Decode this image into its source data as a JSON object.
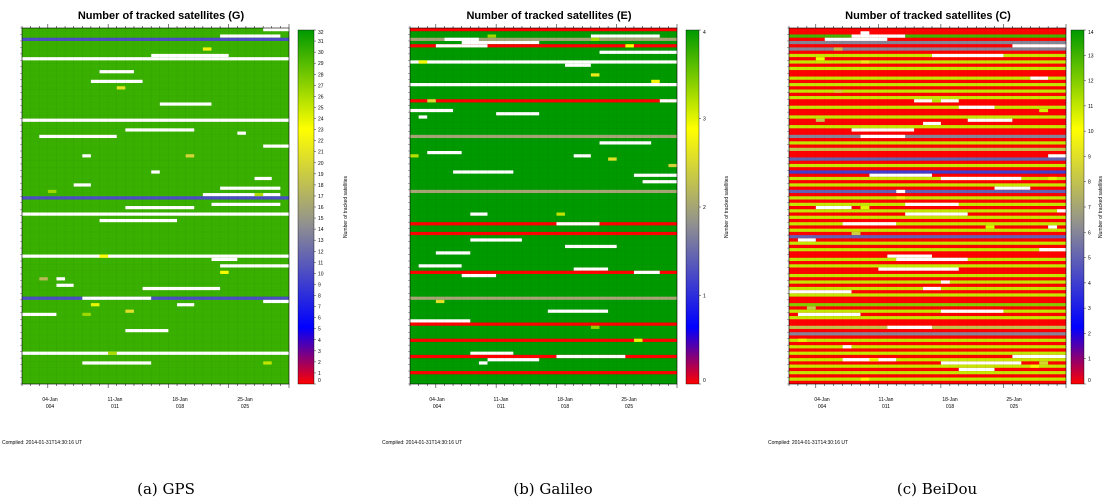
{
  "chart_data": [
    {
      "type": "heatmap",
      "title": "Number of tracked satellites (G)",
      "caption": "(a) GPS",
      "colorbar_label": "Number of tracked satellites",
      "colorbar_range": [
        0,
        32
      ],
      "colorbar_ticks": [
        "0",
        "1",
        "2",
        "3",
        "4",
        "5",
        "6",
        "7",
        "8",
        "9",
        "10",
        "11",
        "12",
        "13",
        "14",
        "15",
        "16",
        "17",
        "18",
        "19",
        "20",
        "21",
        "22",
        "23",
        "24",
        "25",
        "26",
        "27",
        "28",
        "29",
        "30",
        "31",
        "32"
      ],
      "x_ticks": [
        {
          "date": "04-Jan",
          "doy": "004"
        },
        {
          "date": "11-Jan",
          "doy": "011"
        },
        {
          "date": "18-Jan",
          "doy": "018"
        },
        {
          "date": "25-Jan",
          "doy": "025"
        }
      ],
      "compiled": "Compiled: 2014-01-31T14:30:16 UT",
      "background_value": 30,
      "rows": 110,
      "columns": 31,
      "bands": [
        {
          "row": 3,
          "value": 10
        },
        {
          "row": 52,
          "value": 10
        },
        {
          "row": 83,
          "value": 10
        },
        {
          "row": 9,
          "value": null
        },
        {
          "row": 28,
          "value": null
        },
        {
          "row": 57,
          "value": null
        },
        {
          "row": 70,
          "value": null
        },
        {
          "row": 100,
          "value": null
        }
      ]
    },
    {
      "type": "heatmap",
      "title": "Number of tracked satellites (E)",
      "caption": "(b) Galileo",
      "colorbar_label": "Number of tracked satellites",
      "colorbar_range": [
        0,
        4
      ],
      "colorbar_ticks": [
        "0",
        "1",
        "2",
        "3",
        "4"
      ],
      "x_ticks": [
        {
          "date": "04-Jan",
          "doy": "004"
        },
        {
          "date": "11-Jan",
          "doy": "011"
        },
        {
          "date": "18-Jan",
          "doy": "018"
        },
        {
          "date": "25-Jan",
          "doy": "025"
        }
      ],
      "compiled": "Compiled: 2014-01-31T14:30:16 UT",
      "background_value": 4,
      "rows": 110,
      "columns": 31,
      "bands": [
        {
          "row": 0,
          "value": 0
        },
        {
          "row": 5,
          "value": 0
        },
        {
          "row": 22,
          "value": 0
        },
        {
          "row": 60,
          "value": 0
        },
        {
          "row": 63,
          "value": 0
        },
        {
          "row": 75,
          "value": 0
        },
        {
          "row": 91,
          "value": 0
        },
        {
          "row": 96,
          "value": 0
        },
        {
          "row": 101,
          "value": 0
        },
        {
          "row": 106,
          "value": 0
        },
        {
          "row": 3,
          "value": 2
        },
        {
          "row": 10,
          "value": null
        },
        {
          "row": 17,
          "value": null
        },
        {
          "row": 33,
          "value": 2
        },
        {
          "row": 50,
          "value": 2
        },
        {
          "row": 83,
          "value": 2
        }
      ]
    },
    {
      "type": "heatmap",
      "title": "Number of tracked satellites (C)",
      "caption": "(c) BeiDou",
      "colorbar_label": "Number of tracked satellites",
      "colorbar_range": [
        0,
        14
      ],
      "colorbar_ticks": [
        "0",
        "1",
        "2",
        "3",
        "4",
        "5",
        "6",
        "7",
        "8",
        "9",
        "10",
        "11",
        "12",
        "13",
        "14"
      ],
      "x_ticks": [
        {
          "date": "04-Jan",
          "doy": "004"
        },
        {
          "date": "11-Jan",
          "doy": "011"
        },
        {
          "date": "18-Jan",
          "doy": "018"
        },
        {
          "date": "25-Jan",
          "doy": "025"
        }
      ],
      "compiled": "Compiled: 2014-01-31T14:30:16 UT",
      "background_value": 0,
      "rows": 110,
      "columns": 31,
      "bands": [
        {
          "row": 2,
          "value": 13
        },
        {
          "row": 4,
          "value": 6
        },
        {
          "row": 6,
          "value": 6
        },
        {
          "row": 8,
          "value": 11
        },
        {
          "row": 10,
          "value": 11
        },
        {
          "row": 12,
          "value": 11
        },
        {
          "row": 15,
          "value": 11
        },
        {
          "row": 17,
          "value": 11
        },
        {
          "row": 19,
          "value": 11
        },
        {
          "row": 21,
          "value": 11
        },
        {
          "row": 24,
          "value": 11
        },
        {
          "row": 27,
          "value": 11
        },
        {
          "row": 30,
          "value": 11
        },
        {
          "row": 33,
          "value": 6
        },
        {
          "row": 35,
          "value": 11
        },
        {
          "row": 37,
          "value": 8
        },
        {
          "row": 40,
          "value": 5
        },
        {
          "row": 42,
          "value": 11
        },
        {
          "row": 44,
          "value": 4
        },
        {
          "row": 46,
          "value": 11
        },
        {
          "row": 48,
          "value": 11
        },
        {
          "row": 50,
          "value": 5
        },
        {
          "row": 52,
          "value": 11
        },
        {
          "row": 54,
          "value": 11
        },
        {
          "row": 56,
          "value": 11
        },
        {
          "row": 58,
          "value": 11
        },
        {
          "row": 60,
          "value": 11
        },
        {
          "row": 62,
          "value": 11
        },
        {
          "row": 64,
          "value": 5
        },
        {
          "row": 66,
          "value": 11
        },
        {
          "row": 68,
          "value": 11
        },
        {
          "row": 71,
          "value": 11
        },
        {
          "row": 73,
          "value": 11
        },
        {
          "row": 76,
          "value": 11
        },
        {
          "row": 78,
          "value": 11
        },
        {
          "row": 80,
          "value": 11
        },
        {
          "row": 82,
          "value": 11
        },
        {
          "row": 85,
          "value": 12
        },
        {
          "row": 87,
          "value": 11
        },
        {
          "row": 89,
          "value": 11
        },
        {
          "row": 92,
          "value": 8
        },
        {
          "row": 94,
          "value": 6
        },
        {
          "row": 96,
          "value": 11
        },
        {
          "row": 98,
          "value": 11
        },
        {
          "row": 100,
          "value": 11
        },
        {
          "row": 102,
          "value": 11
        },
        {
          "row": 104,
          "value": 11
        },
        {
          "row": 106,
          "value": 11
        },
        {
          "row": 108,
          "value": 11
        }
      ]
    }
  ],
  "colors": {
    "zero": "#ff0000",
    "low": "#0000ff",
    "mid": "#808080",
    "high_yellow": "#ffff00",
    "max": "#009900",
    "missing": "#ffffff"
  }
}
